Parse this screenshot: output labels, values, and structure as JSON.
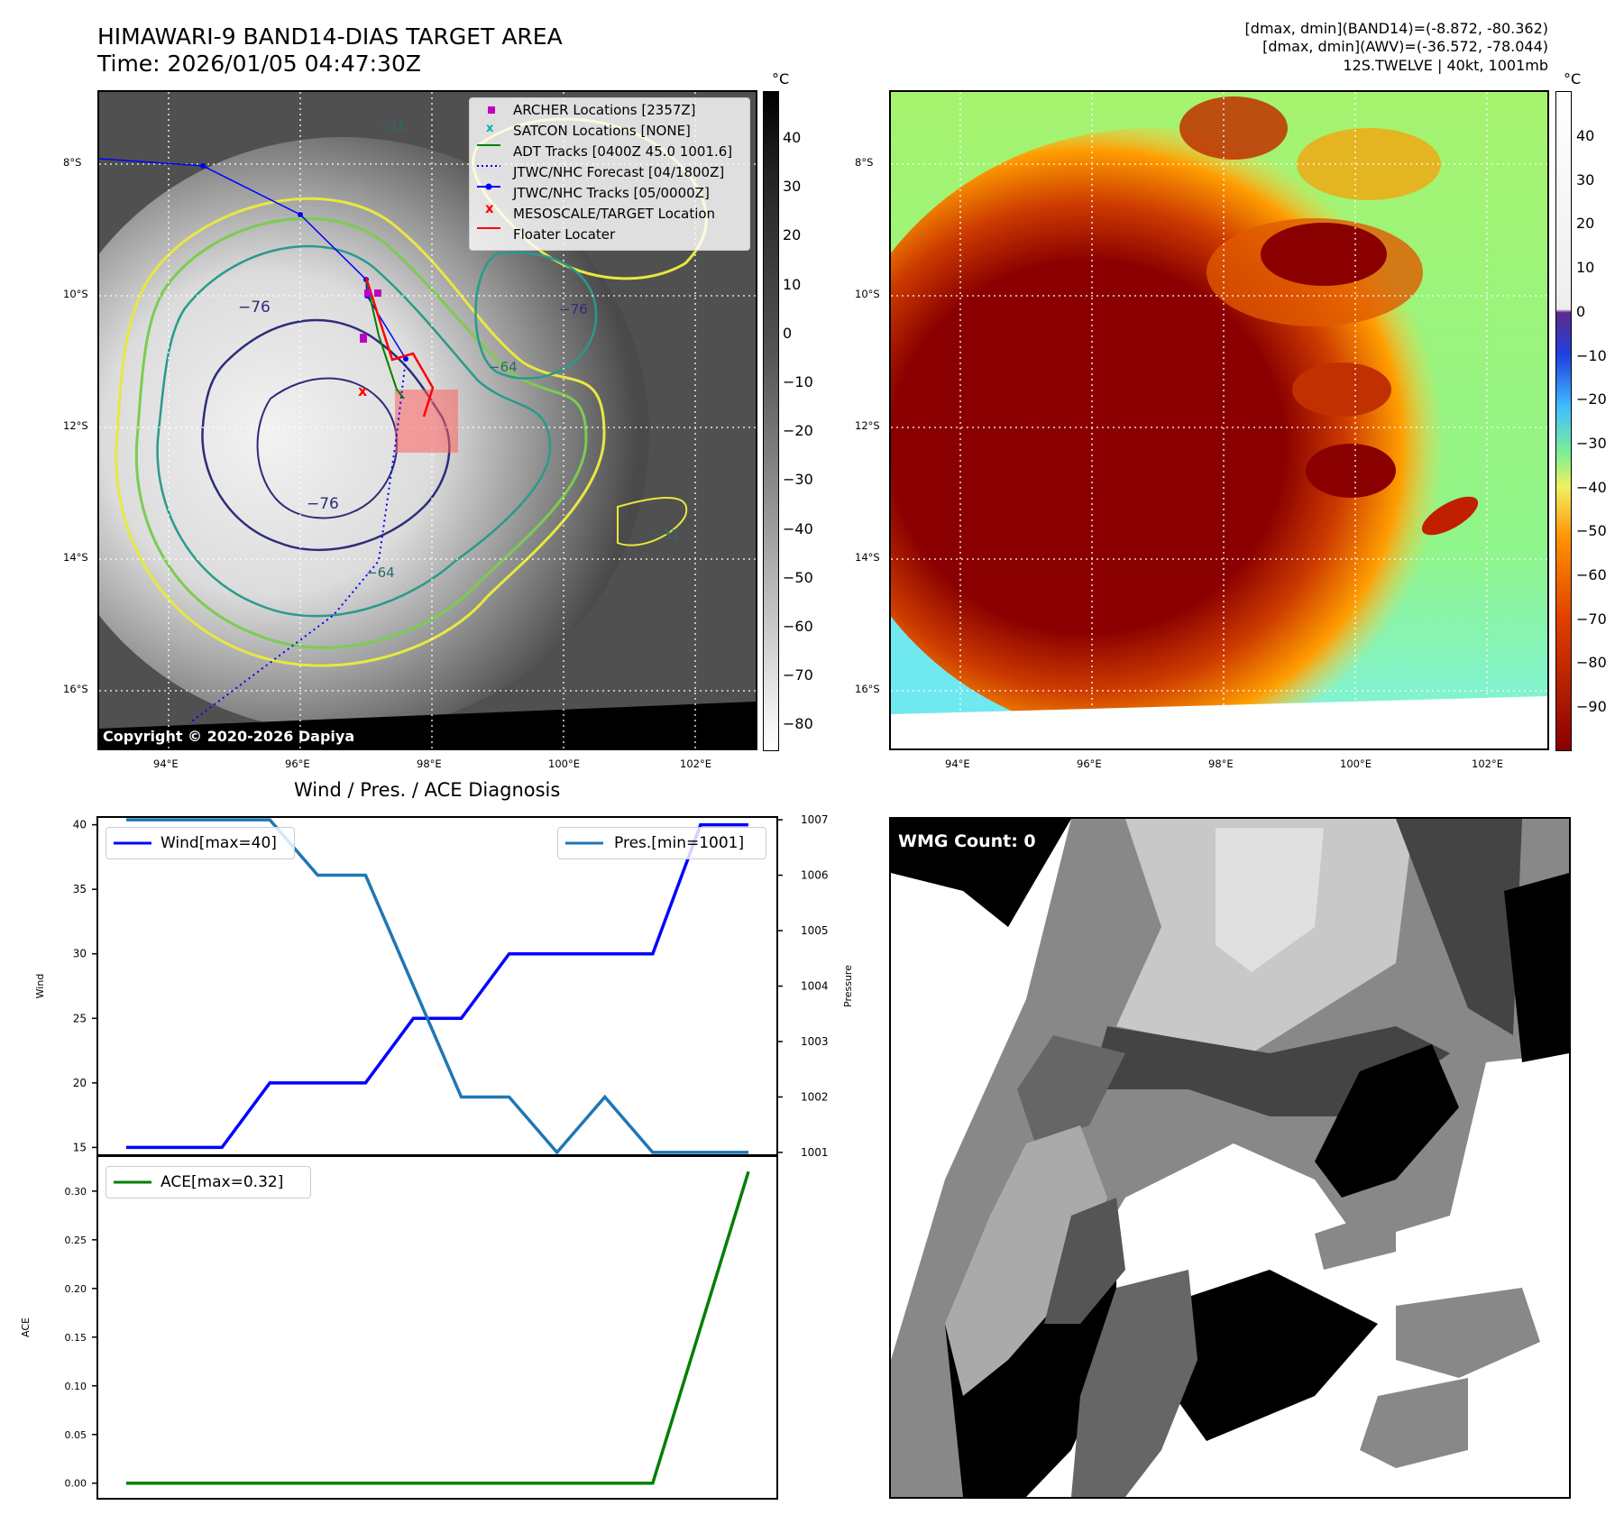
{
  "header": {
    "title_line1": "HIMAWARI-9 BAND14-DIAS TARGET AREA",
    "title_line2": "Time: 2026/01/05 04:47:30Z",
    "info_line1": "[dmax, dmin](BAND14)=(-8.872, -80.362)",
    "info_line2": "[dmax, dmin](AWV)=(-36.572, -78.044)",
    "info_line3": "12S.TWELVE | 40kt, 1001mb"
  },
  "copyright": "Copyright © 2020-2026 Dapiya",
  "colorbar_unit": "°C",
  "map_axes": {
    "lon_labels": [
      "94°E",
      "96°E",
      "98°E",
      "100°E",
      "102°E"
    ],
    "lat_labels": [
      "8°S",
      "10°S",
      "12°S",
      "14°S",
      "16°S"
    ]
  },
  "colorbar1": {
    "ticks": [
      "40",
      "30",
      "20",
      "10",
      "0",
      "−10",
      "−20",
      "−30",
      "−40",
      "−50",
      "−60",
      "−70",
      "−80"
    ]
  },
  "colorbar2": {
    "ticks": [
      "40",
      "30",
      "20",
      "10",
      "0",
      "−10",
      "−20",
      "−30",
      "−40",
      "−50",
      "−60",
      "−70",
      "−80",
      "−90"
    ]
  },
  "contour_labels": [
    "−76",
    "−76",
    "−64",
    "−64",
    "−76",
    "−31",
    "−31"
  ],
  "legend": [
    {
      "label": "ARCHER Locations [2357Z]",
      "color": "#c000c0",
      "marker": "square"
    },
    {
      "label": "SATCON Locations [NONE]",
      "color": "#00b0b0",
      "marker": "x"
    },
    {
      "label": "ADT Tracks [0400Z 45.0 1001.6]",
      "color": "#008000",
      "marker": "line"
    },
    {
      "label": "JTWC/NHC Forecast [04/1800Z]",
      "color": "#0000ff",
      "marker": "dotted"
    },
    {
      "label": "JTWC/NHC Tracks [05/0000Z]",
      "color": "#0000ff",
      "marker": "line-dot"
    },
    {
      "label": "MESOSCALE/TARGET Location",
      "color": "#ff0000",
      "marker": "x"
    },
    {
      "label": "Floater Locater",
      "color": "#ff0000",
      "marker": "line"
    }
  ],
  "chart_title": "Wind / Pres. / ACE Diagnosis",
  "chart_data": [
    {
      "type": "line",
      "name": "wind_pressure",
      "x": [
        0,
        1,
        2,
        3,
        4,
        5,
        6,
        7,
        8,
        9,
        10,
        11,
        12,
        13
      ],
      "series": [
        {
          "name": "Wind[max=40]",
          "axis": "left",
          "color": "#0000ff",
          "values": [
            15,
            15,
            15,
            20,
            20,
            20,
            25,
            25,
            30,
            30,
            30,
            30,
            40,
            40
          ]
        },
        {
          "name": "Pres.[min=1001]",
          "axis": "right",
          "color": "#1f77b4",
          "values": [
            1007,
            1007,
            1007,
            1007,
            1006,
            1006,
            1004,
            1002,
            1002,
            1001,
            1002,
            1001,
            1001,
            1001
          ]
        }
      ],
      "ylabel_left": "Wind",
      "ylabel_right": "Pressure",
      "ylim_left": [
        14.4,
        40.6
      ],
      "ylim_right": [
        1000.95,
        1007.05
      ],
      "left_ticks": [
        "15",
        "20",
        "25",
        "30",
        "35",
        "40"
      ],
      "right_ticks": [
        "1001",
        "1002",
        "1003",
        "1004",
        "1005",
        "1006",
        "1007"
      ]
    },
    {
      "type": "line",
      "name": "ace",
      "x": [
        0,
        1,
        2,
        3,
        4,
        5,
        6,
        7,
        8,
        9,
        10,
        11,
        12,
        13
      ],
      "series": [
        {
          "name": "ACE[max=0.32]",
          "color": "#008000",
          "values": [
            0,
            0,
            0,
            0,
            0,
            0,
            0,
            0,
            0,
            0,
            0,
            0,
            0.16,
            0.32
          ]
        }
      ],
      "ylabel": "ACE",
      "ylim": [
        -0.016,
        0.336
      ],
      "ticks": [
        "0.00",
        "0.05",
        "0.10",
        "0.15",
        "0.20",
        "0.25",
        "0.30"
      ]
    }
  ],
  "wmg_count": "WMG Count: 0"
}
